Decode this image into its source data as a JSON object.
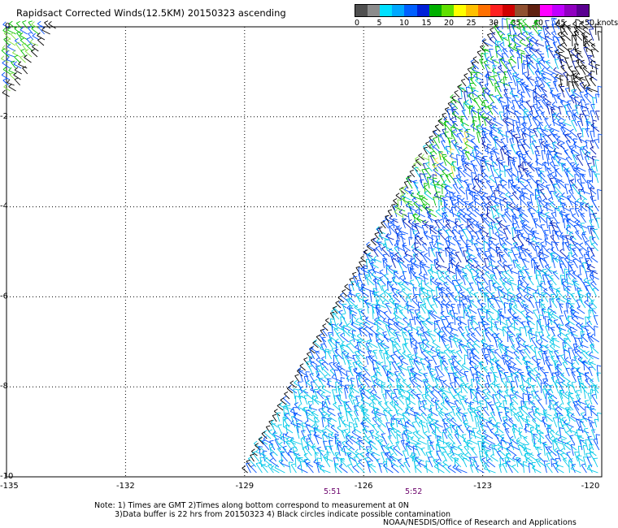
{
  "title": "Rapidsact Corrected Winds(12.5KM) 20150323 ascending",
  "legend": {
    "colors": [
      "#505050",
      "#8c8c8c",
      "#00e0ff",
      "#00a8ff",
      "#0060ff",
      "#0020d8",
      "#00b000",
      "#60e000",
      "#ffff00",
      "#ffc000",
      "#ff7000",
      "#ff2020",
      "#d00000",
      "#905030",
      "#602010",
      "#ff00ff",
      "#c000ff",
      "#9000c0",
      "#5a0090"
    ],
    "labels": [
      "0",
      "5",
      "10",
      "15",
      "20",
      "25",
      "30",
      "35",
      "40",
      "45",
      ">50 knots"
    ]
  },
  "map": {
    "lon_labels": [
      "-135",
      "-132",
      "-129",
      "-126",
      "-123",
      "-120"
    ],
    "lat_labels": [
      "0",
      "-2",
      "-4",
      "-6",
      "-8",
      "-10"
    ],
    "lon_range": [
      -135,
      -120
    ],
    "lat_range": [
      -10,
      0
    ],
    "grid": true,
    "grid_style": "dotted"
  },
  "times": [
    {
      "text": "5:51",
      "lon": -127.2
    },
    {
      "text": "5:52",
      "lon": -124.8
    }
  ],
  "notes": {
    "line1": "Note: 1) Times are GMT 2)Times along bottom correspond to measurement at 0N",
    "line2": "3)Data buffer is 22 hrs from 20150323 4) Black circles indicate possible contamination",
    "credit": "NOAA/NESDIS/Office of Research and Applications"
  },
  "swath_colors": {
    "low": "#00c8e8",
    "mid": "#0050ff",
    "high": "#0018b0",
    "green": "#00c000",
    "lightgreen": "#80e040",
    "yellow": "#ffe040",
    "flag": "#000000"
  }
}
